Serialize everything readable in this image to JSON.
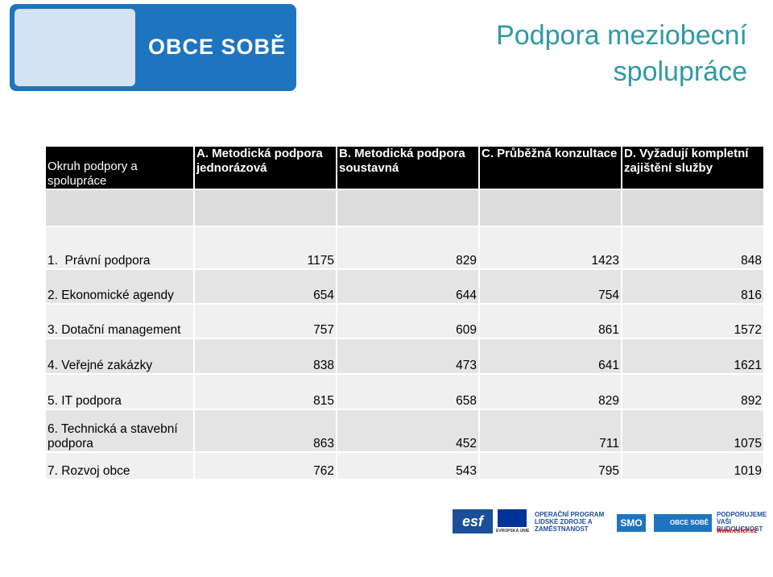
{
  "header": {
    "logo_text": "OBCE SOBĚ",
    "title": "Podpora meziobecní spolupráce"
  },
  "table": {
    "columns": [
      "Okruh podpory a spolupráce",
      "A. Metodická podpora jednorázová",
      "B. Metodická podpora soustavná",
      "C. Průběžná konzultace",
      "D. Vyžadují kompletní zajištění služby"
    ],
    "rows": [
      [
        "1.  Právní podpora",
        1175,
        829,
        1423,
        848
      ],
      [
        "2. Ekonomické agendy",
        654,
        644,
        754,
        816
      ],
      [
        "3. Dotační management",
        757,
        609,
        861,
        1572
      ],
      [
        "4. Veřejné zakázky",
        838,
        473,
        641,
        1621
      ],
      [
        "5. IT podpora",
        815,
        658,
        829,
        892
      ],
      [
        "6. Technická a stavební podpora",
        863,
        452,
        711,
        1075
      ],
      [
        "7. Rozvoj obce",
        762,
        543,
        795,
        1019
      ]
    ]
  },
  "footer": {
    "esf": "esf",
    "eu": "EVROPSKÁ UNIE",
    "op": "OPERAČNÍ PROGRAM LIDSKÉ ZDROJE A ZAMĚSTNANOST",
    "smo": "SMO",
    "obce": "OBCE SOBĚ",
    "slogan": "PODPORUJEME VAŠI BUDOUCNOST",
    "url": "www.esfcr.cz"
  }
}
